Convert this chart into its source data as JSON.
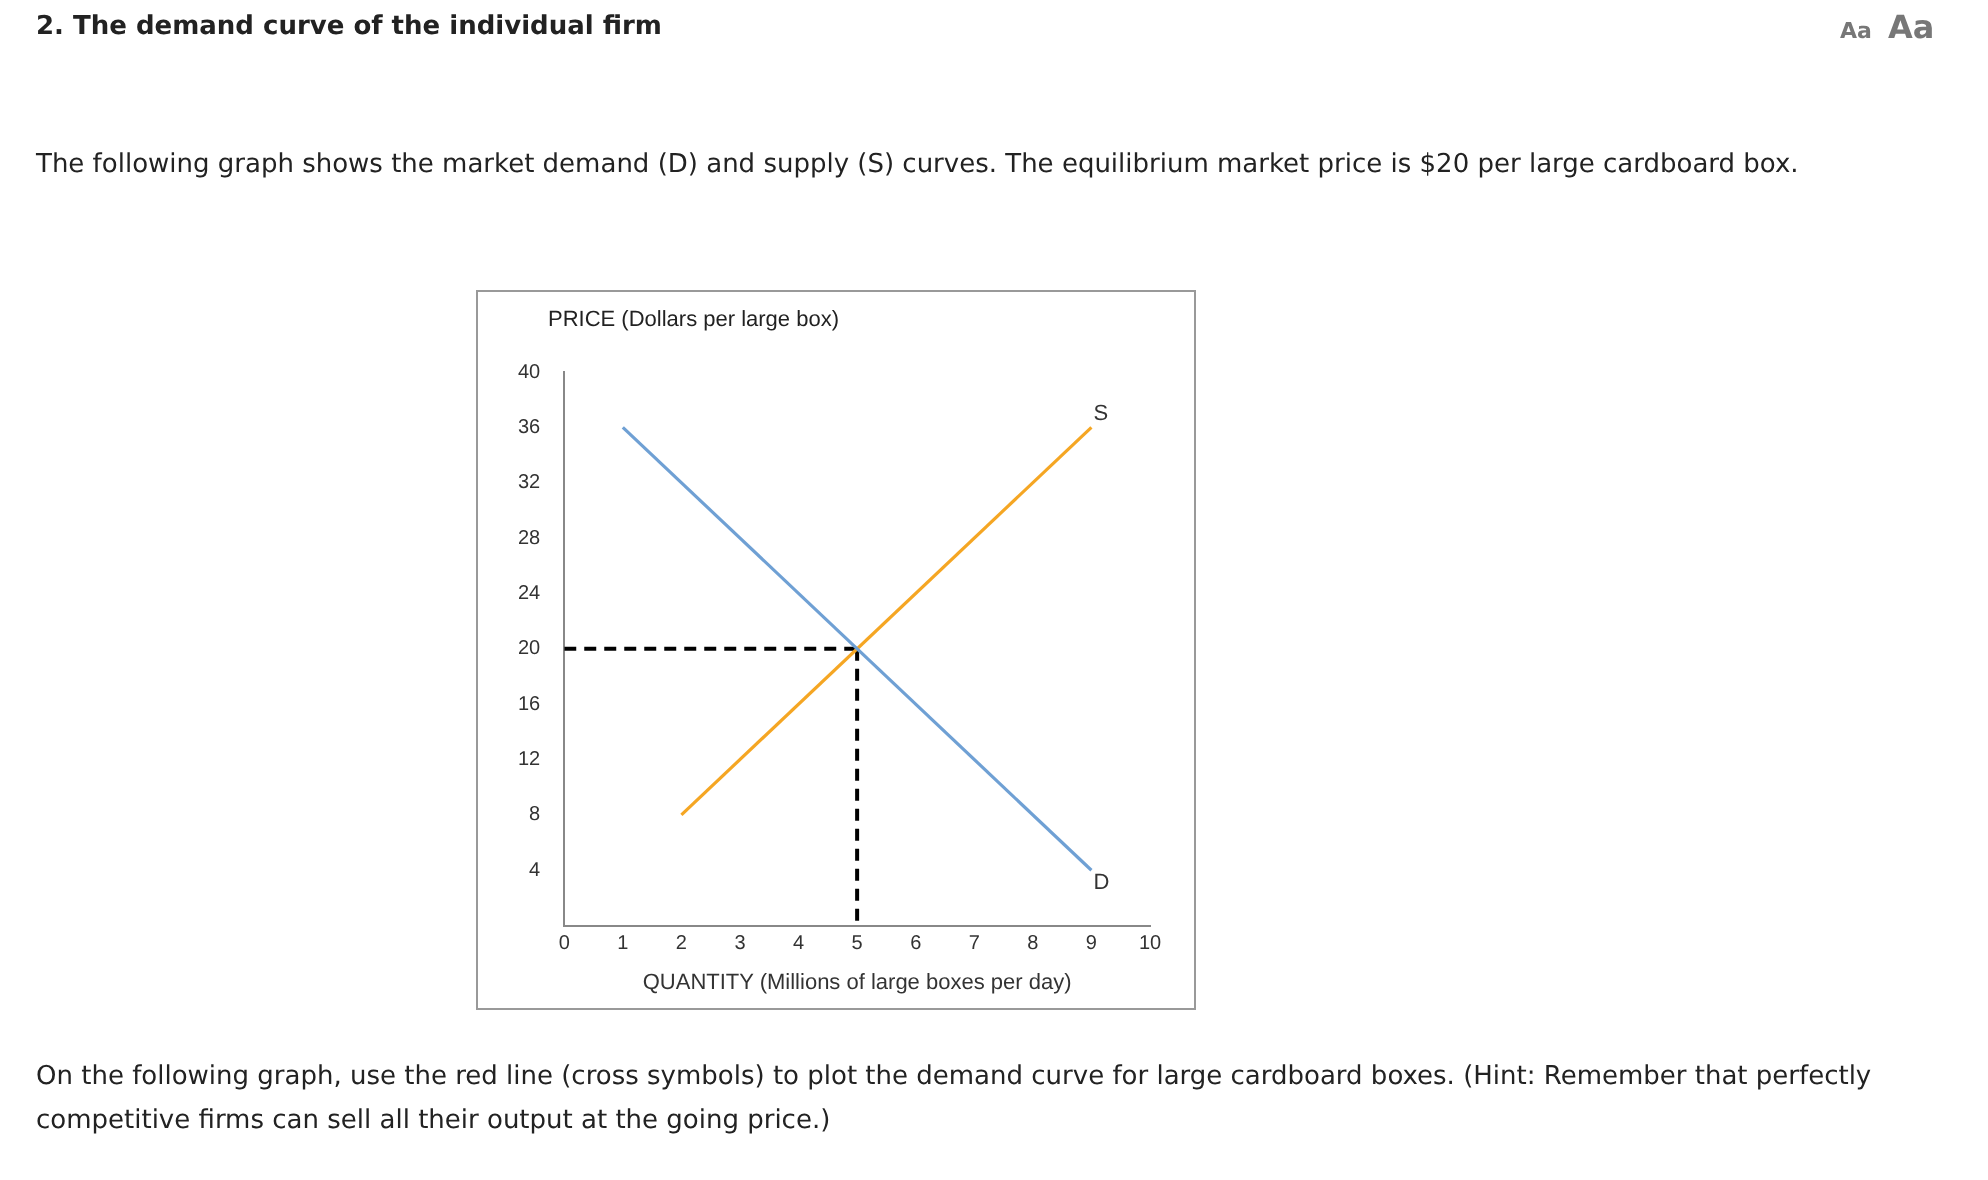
{
  "chart_data": {
    "type": "line",
    "title": "2. The demand curve of the individual firm",
    "subtitle": "The following graph shows the market demand (D) and supply (S) curves. The equilibrium market price is $20 per large cardboard box.",
    "xlabel": "QUANTITY (Millions of large boxes per day)",
    "ylabel": "PRICE (Dollars per large box)",
    "xlim": [
      0,
      10
    ],
    "xticks": [
      0,
      1,
      2,
      3,
      4,
      5,
      6,
      7,
      8,
      9,
      10
    ],
    "ylim": [
      0,
      40
    ],
    "yticks": [
      4,
      8,
      12,
      16,
      20,
      24,
      28,
      32,
      36,
      40
    ],
    "grid": false,
    "legend": false,
    "marker": "none",
    "series": [
      {
        "name": "D",
        "color": "#6fa0d4",
        "x": [
          1,
          9
        ],
        "values": [
          36,
          4
        ]
      },
      {
        "name": "S",
        "color": "#f5a623",
        "x": [
          2,
          9
        ],
        "values": [
          8,
          36
        ]
      },
      {
        "color": "#000000",
        "x": [
          0,
          5
        ],
        "values": [
          20,
          20
        ],
        "line_style": "dashed"
      },
      {
        "color": "#000000",
        "x": [
          5,
          5
        ],
        "values": [
          20,
          0
        ],
        "line_style": "dashed"
      }
    ],
    "annotations": [
      "Aa",
      "Aa",
      "On the following graph, use the red line (cross symbols) to plot the demand curve for large cardboard boxes. (Hint: Remember that perfectly competitive firms can sell all their output at the going price.)"
    ]
  }
}
